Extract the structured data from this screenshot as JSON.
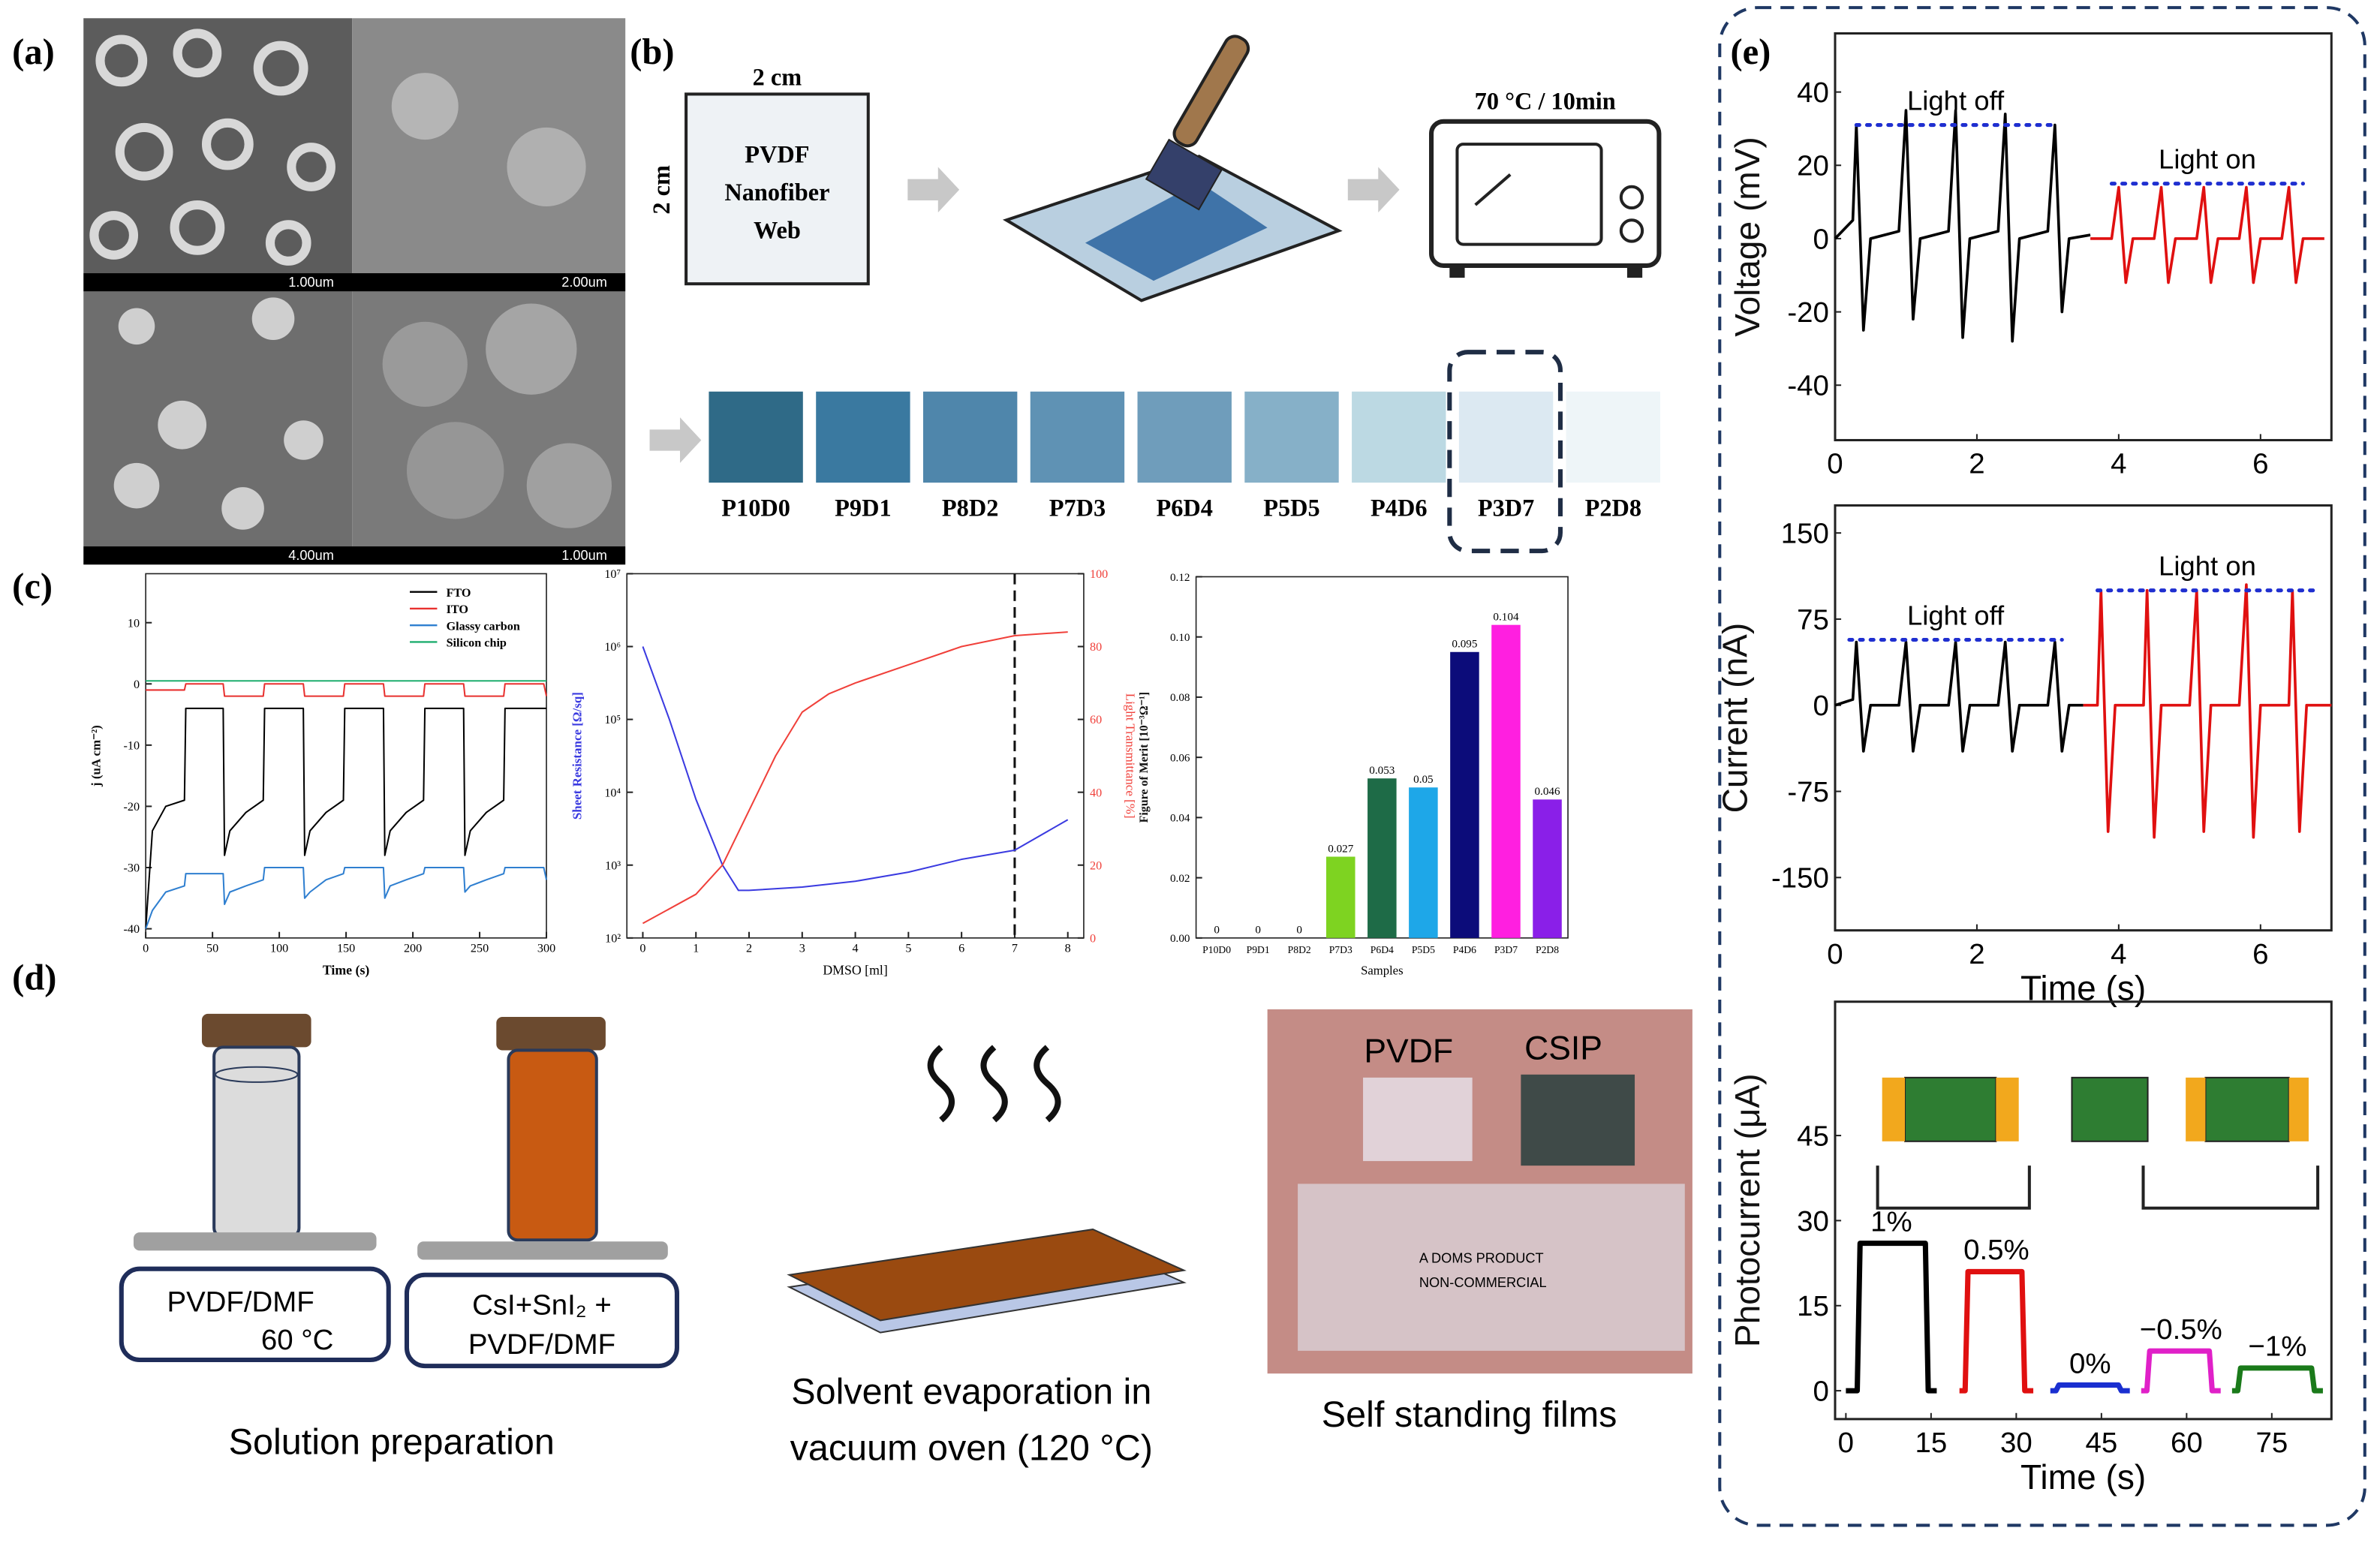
{
  "panel_labels": [
    "(a)",
    "(b)",
    "(c)",
    "(d)",
    "(e)"
  ],
  "sem": {
    "scale_labels": [
      "1.00um",
      "2.00um",
      "4.00um",
      "1.00um"
    ]
  },
  "fabrication": {
    "width_label": "2 cm",
    "height_label": "2 cm",
    "substrate": [
      "PVDF",
      "Nanofiber",
      "Web"
    ],
    "oven": "70 °C / 10min",
    "samples": [
      "P10D0",
      "P9D1",
      "P8D2",
      "P7D3",
      "P6D4",
      "P5D5",
      "P4D6",
      "P3D7",
      "P2D8"
    ]
  },
  "preparation": {
    "solution_1": [
      "PVDF/DMF",
      "60 °C"
    ],
    "solution_2": [
      "CsI+SnI₂ +",
      "PVDF/DMF"
    ],
    "step_1": "Solution preparation",
    "step_2": [
      "Solvent evaporation in",
      "vacuum oven (120 °C)"
    ],
    "step_3": "Self standing films",
    "film_labels": [
      "PVDF",
      "CSIP"
    ],
    "ruler_text": [
      "A DOMS PRODUCT",
      "NON-COMMERCIAL"
    ]
  },
  "chart_data": [
    {
      "type": "line",
      "xlabel": "Time (s)",
      "ylabel": "j (uA cm⁻²)",
      "legend": "upper right",
      "xlim": [
        0,
        300
      ],
      "xticks": [
        0,
        50,
        100,
        150,
        200,
        250,
        300
      ],
      "ylim": [
        -41.5,
        18
      ],
      "yticks": [
        -40,
        -30,
        -20,
        -10,
        0,
        10
      ],
      "x": [
        0,
        5,
        15,
        29,
        30,
        58,
        59,
        63,
        75,
        88,
        89,
        118,
        119,
        123,
        135,
        148,
        149,
        178,
        179,
        183,
        195,
        208,
        209,
        238,
        239,
        243,
        255,
        268,
        269,
        298,
        300
      ],
      "series": [
        {
          "name": "FTO",
          "color": "#000000",
          "values": [
            -40,
            -24,
            -20,
            -19,
            -4,
            -4,
            -28,
            -24,
            -21,
            -19,
            -4,
            -4,
            -28,
            -24,
            -21,
            -19,
            -4,
            -4,
            -28,
            -24,
            -21,
            -19,
            -4,
            -4,
            -28,
            -24,
            -21,
            -19,
            -4,
            -4,
            -4
          ]
        },
        {
          "name": "ITO",
          "color": "#e8312f",
          "values": [
            -1,
            -1,
            -1,
            -1,
            0,
            0,
            -2,
            -2,
            -2,
            -2,
            0,
            0,
            -2,
            -2,
            -2,
            -2,
            0,
            0,
            -2,
            -2,
            -2,
            -2,
            0,
            0,
            -2,
            -2,
            -2,
            -2,
            0,
            0,
            -2
          ]
        },
        {
          "name": "Glassy carbon",
          "color": "#2f7fd0",
          "values": [
            -40,
            -37,
            -34,
            -33,
            -31,
            -31,
            -36,
            -34,
            -33,
            -32,
            -30,
            -30,
            -35,
            -34,
            -32,
            -31,
            -30,
            -30,
            -35,
            -33,
            -32,
            -31,
            -30,
            -30,
            -34,
            -33,
            -32,
            -31,
            -30,
            -30,
            -32
          ]
        },
        {
          "name": "Silicon chip",
          "color": "#1fae6f",
          "values": [
            0.5,
            0.5,
            0.5,
            0.5,
            0.5,
            0.5,
            0.5,
            0.5,
            0.5,
            0.5,
            0.5,
            0.5,
            0.5,
            0.5,
            0.5,
            0.5,
            0.5,
            0.5,
            0.5,
            0.5,
            0.5,
            0.5,
            0.5,
            0.5,
            0.5,
            0.5,
            0.5,
            0.5,
            0.5,
            0.5,
            0.5
          ]
        }
      ]
    },
    {
      "type": "line",
      "xlabel": "DMSO [ml]",
      "ylabel": "Sheet Resistance [Ω/sq]",
      "y2label": "Light Transmittance [%]",
      "xlim": [
        -0.3,
        8.3
      ],
      "xticks": [
        0,
        1,
        2,
        3,
        4,
        5,
        6,
        7,
        8
      ],
      "y_scale": "log",
      "ylim": [
        100,
        10000000
      ],
      "yticks": [
        {
          "value": 100,
          "label": "10²"
        },
        {
          "value": 1000,
          "label": "10³"
        },
        {
          "value": 10000,
          "label": "10⁴"
        },
        {
          "value": 100000,
          "label": "10⁵"
        },
        {
          "value": 1000000,
          "label": "10⁶"
        },
        {
          "value": 10000000,
          "label": "10⁷"
        }
      ],
      "y2lim": [
        0,
        100
      ],
      "y2ticks": [
        0,
        20,
        40,
        60,
        80,
        100
      ],
      "vlines": [
        7
      ],
      "series": [
        {
          "color": "#3a3ae0",
          "x": [
            0,
            0.5,
            1,
            1.5,
            1.8,
            2,
            3,
            4,
            5,
            6,
            7,
            8
          ],
          "values": [
            1000000,
            100000,
            8000,
            1000,
            450,
            450,
            500,
            600,
            800,
            1200,
            1600,
            4200
          ]
        },
        {
          "color": "#f0403a",
          "axis": "y2",
          "x": [
            0,
            1,
            1.5,
            2,
            2.5,
            3,
            3.5,
            4,
            5,
            6,
            7,
            8
          ],
          "values": [
            4,
            12,
            20,
            35,
            50,
            62,
            67,
            70,
            75,
            80,
            83,
            84
          ]
        }
      ]
    },
    {
      "type": "bar",
      "xlabel": "Samples",
      "ylabel": "Figure of Merit [10⁻³Ω⁻¹]",
      "categories": [
        "P10D0",
        "P9D1",
        "P8D2",
        "P7D3",
        "P6D4",
        "P5D5",
        "P4D6",
        "P3D7",
        "P2D8"
      ],
      "values": [
        0,
        0,
        0,
        0.027,
        0.053,
        0.05,
        0.095,
        0.104,
        0.046
      ],
      "colors": [
        "#888888",
        "#888888",
        "#888888",
        "#7ed321",
        "#1e6b47",
        "#1ea7e8",
        "#0c0c7a",
        "#ff1fe0",
        "#8a1fe8"
      ],
      "ylim": [
        0,
        0.12
      ],
      "yticks": [
        {
          "value": 0,
          "label": "0.00"
        },
        0.02,
        0.04,
        0.06,
        0.08,
        {
          "value": 0.1,
          "label": "0.10"
        },
        0.12
      ]
    },
    {
      "type": "line",
      "ylabel": "Voltage (mV)",
      "xlim": [
        0,
        7
      ],
      "xticks": [
        0,
        2,
        4,
        6
      ],
      "ylim": [
        -55,
        56
      ],
      "yticks": [
        -40,
        -20,
        0,
        20,
        40
      ],
      "series": [
        {
          "color": "#000000",
          "x": [
            0,
            0.25,
            0.3,
            0.4,
            0.5,
            0.9,
            1.0,
            1.1,
            1.2,
            1.6,
            1.7,
            1.8,
            1.9,
            2.3,
            2.4,
            2.5,
            2.6,
            3.0,
            3.1,
            3.2,
            3.3,
            3.6
          ],
          "values": [
            0,
            5,
            31,
            -25,
            0,
            2,
            35,
            -22,
            0,
            2,
            35,
            -27,
            0,
            2,
            34,
            -28,
            0,
            2,
            31,
            -20,
            0,
            1
          ]
        },
        {
          "color": "#e01010",
          "x": [
            3.6,
            3.9,
            4.0,
            4.1,
            4.2,
            4.5,
            4.6,
            4.7,
            4.8,
            5.1,
            5.2,
            5.3,
            5.4,
            5.7,
            5.8,
            5.9,
            6.0,
            6.3,
            6.4,
            6.5,
            6.6,
            6.9
          ],
          "values": [
            0,
            0,
            14,
            -12,
            0,
            0,
            14,
            -12,
            0,
            0,
            14,
            -12,
            0,
            0,
            14,
            -12,
            0,
            0,
            14,
            -12,
            0,
            0
          ]
        }
      ],
      "reference_lines": [
        {
          "label": "Light off",
          "y": 31,
          "x": [
            0.3,
            3.1
          ],
          "color": "#1f2fd0"
        },
        {
          "label": "Light on",
          "y": 15,
          "x": [
            3.9,
            6.6
          ],
          "color": "#1f2fd0"
        }
      ]
    },
    {
      "type": "line",
      "xlabel": "Time (s)",
      "ylabel": "Current (nA)",
      "xlim": [
        0,
        7
      ],
      "xticks": [
        0,
        2,
        4,
        6
      ],
      "ylim": [
        -196,
        174
      ],
      "yticks": [
        -150,
        -75,
        0,
        75,
        150
      ],
      "series": [
        {
          "color": "#000000",
          "x": [
            0,
            0.25,
            0.3,
            0.4,
            0.5,
            0.9,
            1.0,
            1.1,
            1.2,
            1.6,
            1.7,
            1.8,
            1.9,
            2.3,
            2.4,
            2.5,
            2.6,
            3.0,
            3.1,
            3.2,
            3.3,
            3.5
          ],
          "values": [
            0,
            5,
            55,
            -40,
            0,
            0,
            55,
            -40,
            0,
            0,
            55,
            -40,
            0,
            0,
            55,
            -40,
            0,
            0,
            55,
            -40,
            0,
            0
          ]
        },
        {
          "color": "#e01010",
          "x": [
            3.5,
            3.7,
            3.75,
            3.85,
            3.95,
            4.35,
            4.4,
            4.5,
            4.6,
            5.0,
            5.1,
            5.2,
            5.3,
            5.7,
            5.8,
            5.9,
            6.0,
            6.4,
            6.45,
            6.55,
            6.65,
            7.0
          ],
          "values": [
            0,
            0,
            100,
            -110,
            0,
            0,
            100,
            -115,
            0,
            0,
            100,
            -110,
            0,
            0,
            105,
            -115,
            0,
            0,
            100,
            -110,
            0,
            0
          ]
        }
      ],
      "reference_lines": [
        {
          "label": "Light off",
          "y": 57,
          "x": [
            0.2,
            3.2
          ],
          "color": "#1f2fd0"
        },
        {
          "label": "Light on",
          "y": 100,
          "x": [
            3.7,
            6.8
          ],
          "color": "#1f2fd0"
        }
      ]
    },
    {
      "type": "line",
      "xlabel": "Time (s)",
      "ylabel": "Photocurrent (μA)",
      "xlim": [
        -1.9,
        85.5
      ],
      "xticks": [
        0,
        15,
        30,
        45,
        60,
        75
      ],
      "ylim": [
        -5,
        68.6
      ],
      "yticks": [
        0,
        15,
        30,
        45
      ],
      "series_labels": "above",
      "series": [
        {
          "name": "1%",
          "color": "#000000",
          "x": [
            0,
            2,
            2.5,
            14,
            14.5,
            16
          ],
          "values": [
            0,
            0,
            26,
            26,
            0,
            0
          ]
        },
        {
          "name": "0.5%",
          "color": "#e01010",
          "x": [
            20,
            21,
            21.5,
            31,
            31.5,
            33
          ],
          "values": [
            0,
            0,
            21,
            21,
            0,
            0
          ]
        },
        {
          "name": "0%",
          "color": "#1a2fd0",
          "x": [
            36,
            37,
            37.5,
            48,
            48.5,
            50
          ],
          "values": [
            0,
            0,
            1,
            1,
            0,
            0
          ]
        },
        {
          "name": "−0.5%",
          "color": "#e020c8",
          "x": [
            52,
            53,
            53.5,
            64,
            64.5,
            66
          ],
          "values": [
            0,
            0,
            7,
            7,
            0,
            0
          ]
        },
        {
          "name": "−1%",
          "color": "#1a7a1a",
          "x": [
            68,
            69,
            69.5,
            82,
            82.5,
            84
          ],
          "values": [
            0,
            0,
            4,
            4,
            0,
            0
          ]
        }
      ]
    }
  ]
}
